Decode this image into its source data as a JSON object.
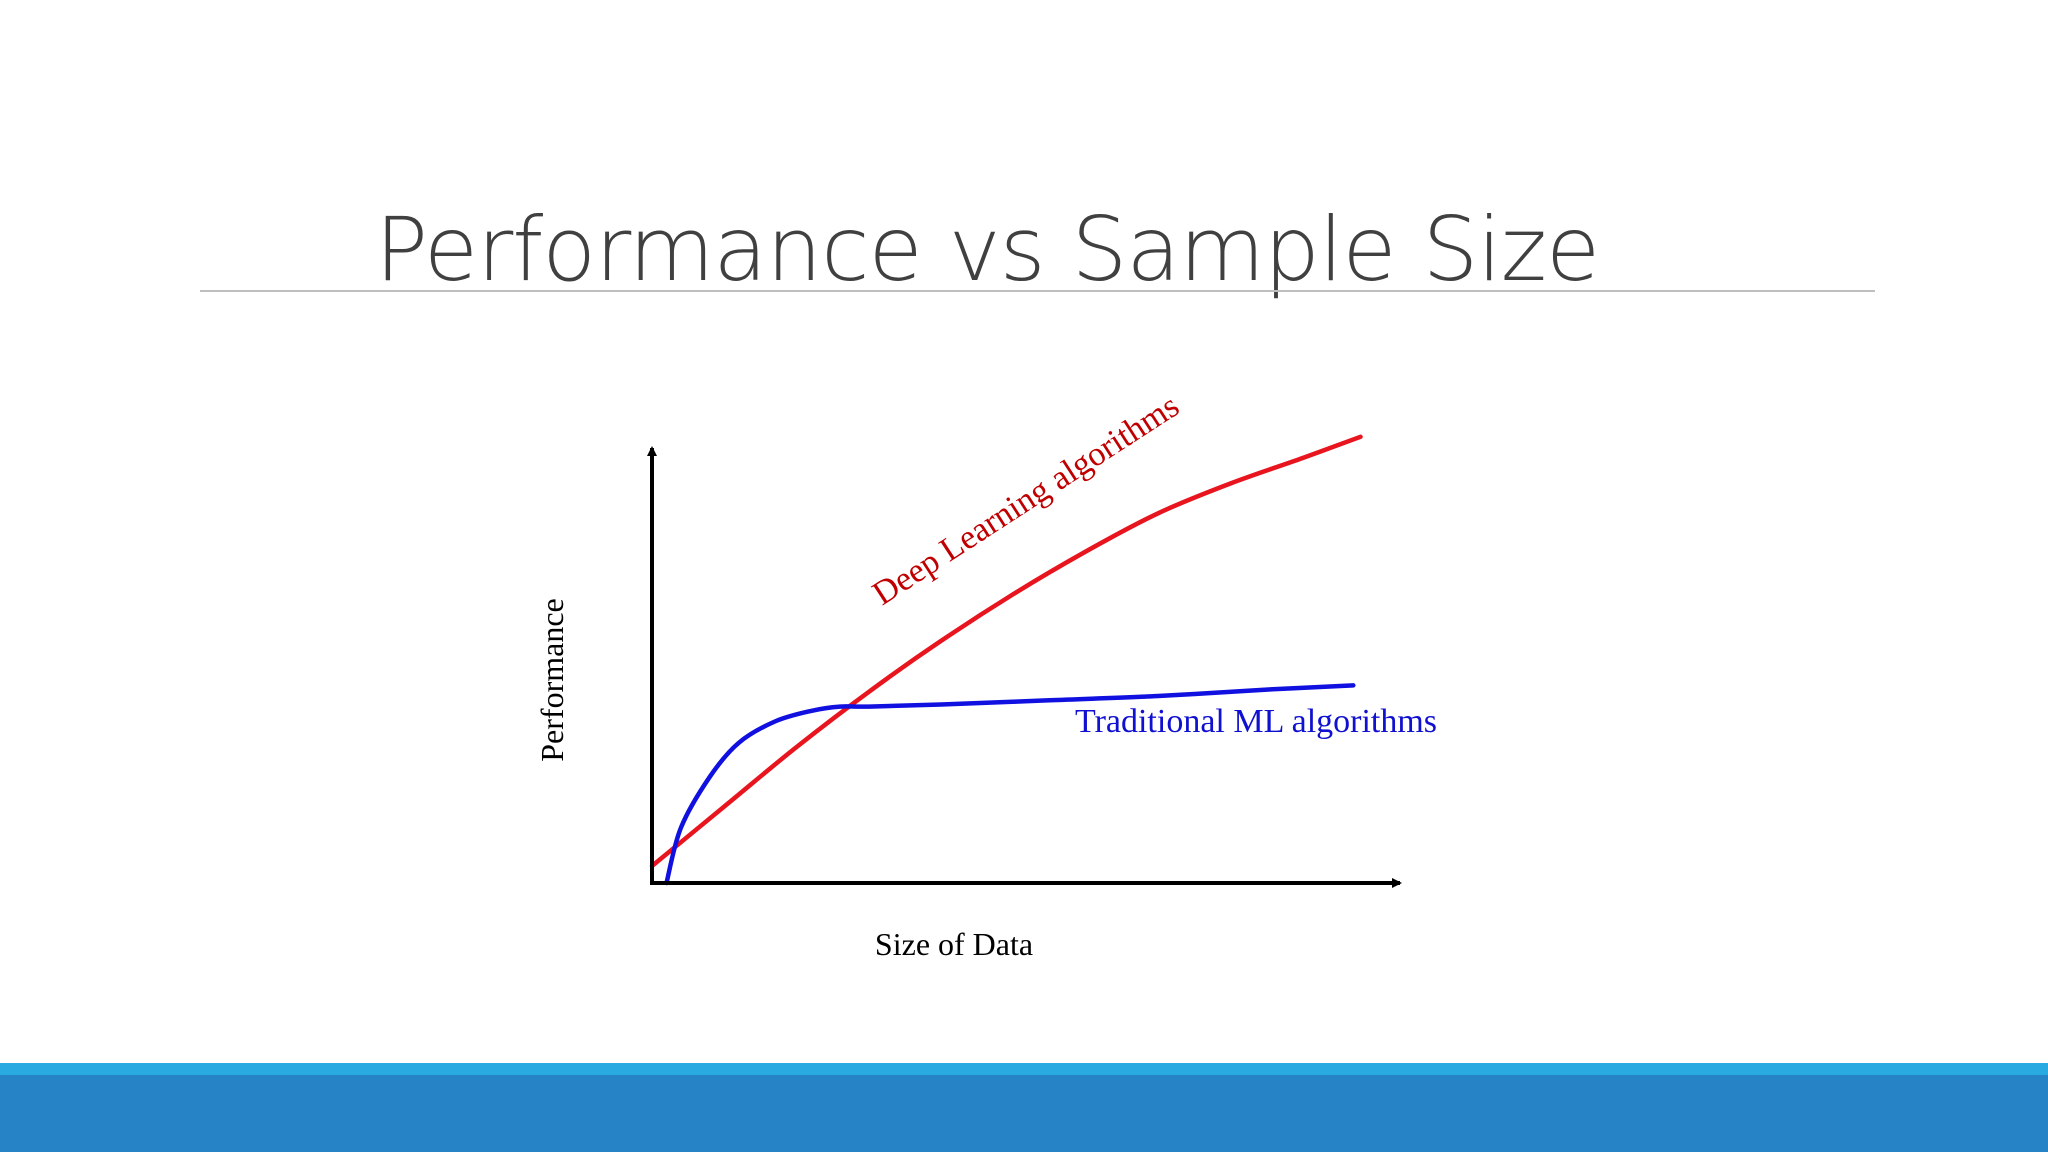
{
  "slide": {
    "title": "Performance vs Sample Size",
    "colors": {
      "title_text": "#404040",
      "footer_light": "#29abe2",
      "footer_dark": "#2583c6",
      "rule": "#bfbfbf"
    }
  },
  "chart_data": {
    "type": "line",
    "title": "",
    "xlabel": "Size of Data",
    "ylabel": "Performance",
    "grid": false,
    "legend": "none",
    "axes_style": "arrows, no ticks",
    "xlim": [
      0,
      100
    ],
    "ylim": [
      0,
      100
    ],
    "series": [
      {
        "name": "Deep Learning algorithms",
        "color": "#e8141e",
        "label_color": "#c00000",
        "x": [
          0,
          10,
          20,
          30,
          40,
          50,
          60,
          70,
          80,
          90,
          98
        ],
        "y": [
          4,
          18,
          32,
          45,
          57,
          68,
          78,
          87,
          94,
          100,
          105
        ]
      },
      {
        "name": "Traditional ML algorithms",
        "color": "#1010e0",
        "label_color": "#1010d0",
        "x": [
          2,
          4,
          8,
          12,
          17,
          22,
          26,
          30,
          40,
          55,
          70,
          85,
          97
        ],
        "y": [
          0,
          13,
          25,
          33,
          38,
          40.5,
          41.5,
          41.5,
          42,
          43,
          44,
          45.5,
          46.5
        ]
      }
    ]
  }
}
